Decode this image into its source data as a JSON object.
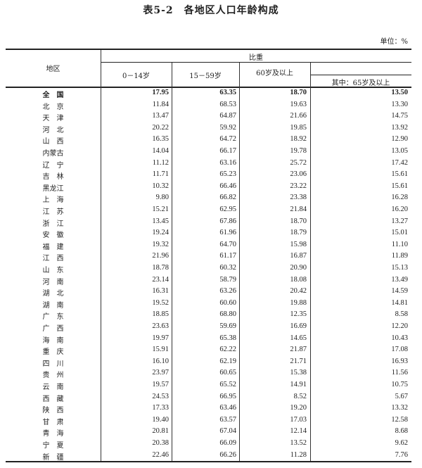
{
  "title": "表5-2　各地区人口年龄构成",
  "unit": "单位：%",
  "headers": {
    "region": "地区",
    "group": "比重",
    "c1": "0－14岁",
    "c2": "15－59岁",
    "c3": "60岁及以上",
    "c4": "其中：65岁及以上"
  },
  "rows": [
    [
      "全　国",
      "17.95",
      "63.35",
      "18.70",
      "13.50"
    ],
    [
      "北　京",
      "11.84",
      "68.53",
      "19.63",
      "13.30"
    ],
    [
      "天　津",
      "13.47",
      "64.87",
      "21.66",
      "14.75"
    ],
    [
      "河　北",
      "20.22",
      "59.92",
      "19.85",
      "13.92"
    ],
    [
      "山　西",
      "16.35",
      "64.72",
      "18.92",
      "12.90"
    ],
    [
      "内蒙古",
      "14.04",
      "66.17",
      "19.78",
      "13.05"
    ],
    [
      "辽　宁",
      "11.12",
      "63.16",
      "25.72",
      "17.42"
    ],
    [
      "吉　林",
      "11.71",
      "65.23",
      "23.06",
      "15.61"
    ],
    [
      "黑龙江",
      "10.32",
      "66.46",
      "23.22",
      "15.61"
    ],
    [
      "上　海",
      "9.80",
      "66.82",
      "23.38",
      "16.28"
    ],
    [
      "江　苏",
      "15.21",
      "62.95",
      "21.84",
      "16.20"
    ],
    [
      "浙　江",
      "13.45",
      "67.86",
      "18.70",
      "13.27"
    ],
    [
      "安　徽",
      "19.24",
      "61.96",
      "18.79",
      "15.01"
    ],
    [
      "福　建",
      "19.32",
      "64.70",
      "15.98",
      "11.10"
    ],
    [
      "江　西",
      "21.96",
      "61.17",
      "16.87",
      "11.89"
    ],
    [
      "山　东",
      "18.78",
      "60.32",
      "20.90",
      "15.13"
    ],
    [
      "河　南",
      "23.14",
      "58.79",
      "18.08",
      "13.49"
    ],
    [
      "湖　北",
      "16.31",
      "63.26",
      "20.42",
      "14.59"
    ],
    [
      "湖　南",
      "19.52",
      "60.60",
      "19.88",
      "14.81"
    ],
    [
      "广　东",
      "18.85",
      "68.80",
      "12.35",
      "8.58"
    ],
    [
      "广　西",
      "23.63",
      "59.69",
      "16.69",
      "12.20"
    ],
    [
      "海　南",
      "19.97",
      "65.38",
      "14.65",
      "10.43"
    ],
    [
      "重　庆",
      "15.91",
      "62.22",
      "21.87",
      "17.08"
    ],
    [
      "四　川",
      "16.10",
      "62.19",
      "21.71",
      "16.93"
    ],
    [
      "贵　州",
      "23.97",
      "60.65",
      "15.38",
      "11.56"
    ],
    [
      "云　南",
      "19.57",
      "65.52",
      "14.91",
      "10.75"
    ],
    [
      "西　藏",
      "24.53",
      "66.95",
      "8.52",
      "5.67"
    ],
    [
      "陕　西",
      "17.33",
      "63.46",
      "19.20",
      "13.32"
    ],
    [
      "甘　肃",
      "19.40",
      "63.57",
      "17.03",
      "12.58"
    ],
    [
      "青　海",
      "20.81",
      "67.04",
      "12.14",
      "8.68"
    ],
    [
      "宁　夏",
      "20.38",
      "66.09",
      "13.52",
      "9.62"
    ],
    [
      "新　疆",
      "22.46",
      "66.26",
      "11.28",
      "7.76"
    ]
  ]
}
